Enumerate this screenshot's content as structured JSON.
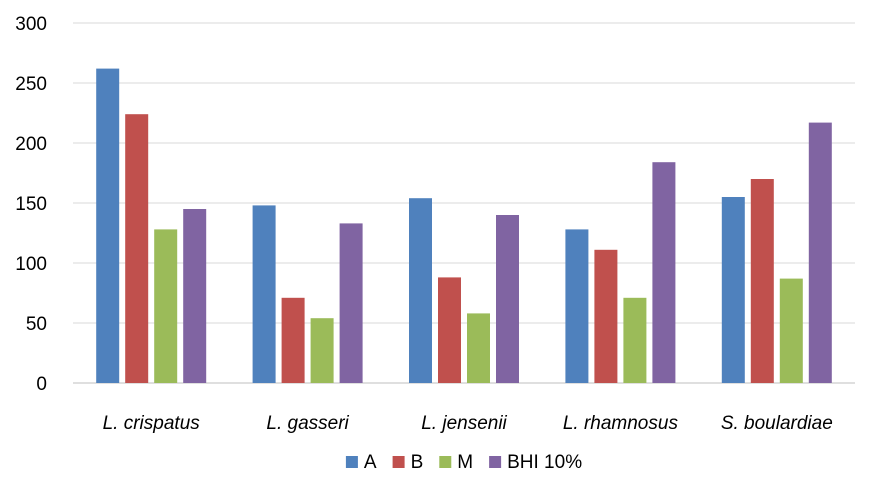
{
  "chart_data": {
    "type": "bar",
    "categories": [
      "L. crispatus",
      "L. gasseri",
      "L. jensenii",
      "L. rhamnosus",
      "S. boulardiae"
    ],
    "series": [
      {
        "name": "A",
        "color": "#4f81bd",
        "values": [
          262,
          148,
          154,
          128,
          155
        ]
      },
      {
        "name": "B",
        "color": "#c0504d",
        "values": [
          224,
          71,
          88,
          111,
          170
        ]
      },
      {
        "name": "M",
        "color": "#9bbb59",
        "values": [
          128,
          54,
          58,
          71,
          87
        ]
      },
      {
        "name": "BHI 10%",
        "color": "#8064a2",
        "values": [
          145,
          133,
          140,
          184,
          217
        ]
      }
    ],
    "title": "",
    "xlabel": "",
    "ylabel": "",
    "ylim": [
      0,
      300
    ],
    "yticks": [
      0,
      50,
      100,
      150,
      200,
      250,
      300
    ],
    "grid": true,
    "gridline_color": "#d9d9d9",
    "legend_position": "bottom"
  }
}
